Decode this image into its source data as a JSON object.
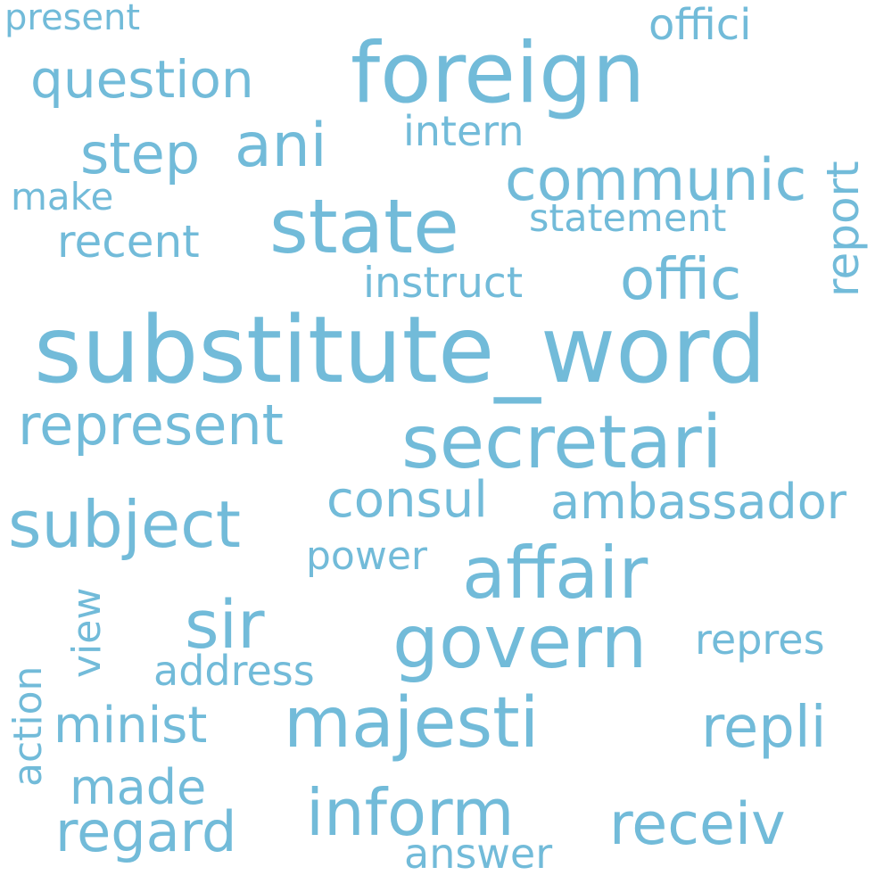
{
  "word_cloud": {
    "text_color": "#72bbd9",
    "background_color": "#ffffff",
    "words": [
      {
        "text": "substitute_word"
      },
      {
        "text": "foreign"
      },
      {
        "text": "state"
      },
      {
        "text": "secretari"
      },
      {
        "text": "govern"
      },
      {
        "text": "affair"
      },
      {
        "text": "majesti"
      },
      {
        "text": "subject"
      },
      {
        "text": "communic"
      },
      {
        "text": "offic"
      },
      {
        "text": "represent"
      },
      {
        "text": "sir"
      },
      {
        "text": "inform"
      },
      {
        "text": "receiv"
      },
      {
        "text": "ani"
      },
      {
        "text": "consul"
      },
      {
        "text": "ambassador"
      },
      {
        "text": "question"
      },
      {
        "text": "regard"
      },
      {
        "text": "step"
      },
      {
        "text": "repli"
      },
      {
        "text": "minist"
      },
      {
        "text": "recent"
      },
      {
        "text": "offici"
      },
      {
        "text": "report"
      },
      {
        "text": "repres"
      },
      {
        "text": "made"
      },
      {
        "text": "statement"
      },
      {
        "text": "instruct"
      },
      {
        "text": "intern"
      },
      {
        "text": "action"
      },
      {
        "text": "view"
      },
      {
        "text": "address"
      },
      {
        "text": "answer"
      },
      {
        "text": "power"
      },
      {
        "text": "make"
      },
      {
        "text": "present"
      }
    ]
  }
}
